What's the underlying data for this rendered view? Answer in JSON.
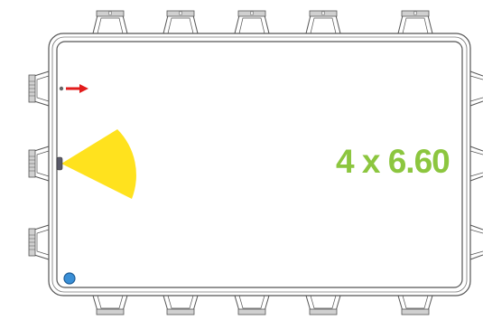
{
  "drawing": {
    "dimension_label": "4 x 6.60",
    "colors": {
      "outline": "#555555",
      "label": "#8cc63f",
      "sensor_cone": "#ffe21e",
      "arrow": "#e21b1b",
      "marker": "#3a8fd6"
    }
  }
}
